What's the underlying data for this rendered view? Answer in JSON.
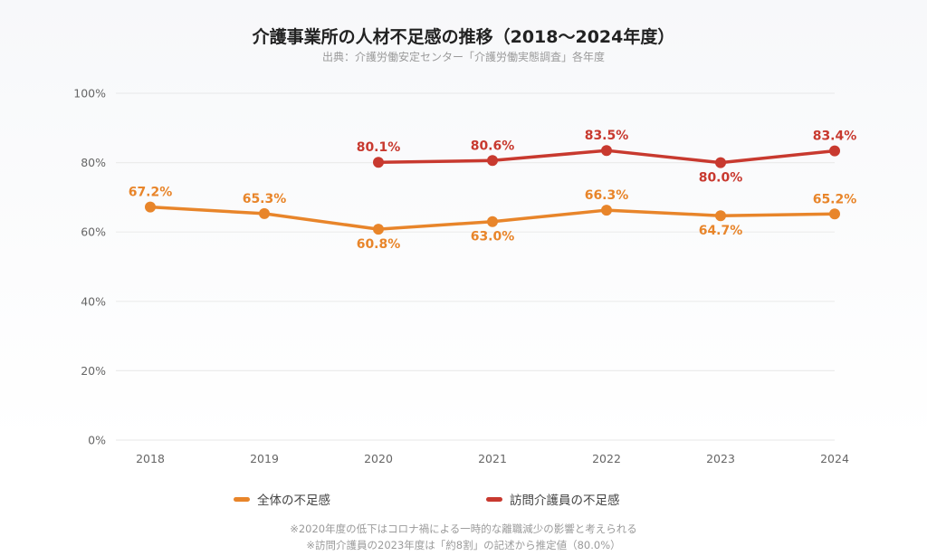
{
  "chart_data": {
    "type": "line",
    "title": "介護事業所の人材不足感の推移（2018〜2024年度）",
    "subtitle": "出典：介護労働安定センター「介護労働実態調査」各年度",
    "x": [
      "2018",
      "2019",
      "2020",
      "2021",
      "2022",
      "2023",
      "2024"
    ],
    "ylim": [
      0,
      100
    ],
    "yticks": [
      0,
      20,
      40,
      60,
      80,
      100
    ],
    "ytick_labels": [
      "0%",
      "20%",
      "40%",
      "60%",
      "80%",
      "100%"
    ],
    "grid": true,
    "legend_position": "bottom",
    "series": [
      {
        "name": "全体の不足感",
        "color": "#e8852a",
        "values": [
          67.2,
          65.3,
          60.8,
          63.0,
          66.3,
          64.7,
          65.2
        ],
        "labels": [
          "67.2%",
          "65.3%",
          "60.8%",
          "63.0%",
          "66.3%",
          "64.7%",
          "65.2%"
        ],
        "label_side": [
          "above",
          "above",
          "below",
          "below",
          "above",
          "below",
          "above"
        ]
      },
      {
        "name": "訪問介護員の不足感",
        "color": "#c8392f",
        "values": [
          null,
          null,
          80.1,
          80.6,
          83.5,
          80.0,
          83.4
        ],
        "labels": [
          null,
          null,
          "80.1%",
          "80.6%",
          "83.5%",
          "80.0%",
          "83.4%"
        ],
        "label_side": [
          null,
          null,
          "above",
          "above",
          "above",
          "below",
          "above"
        ]
      }
    ]
  },
  "notes": [
    "※2020年度の低下はコロナ禍による一時的な離職減少の影響と考えられる",
    "※訪問介護員の2023年度は「約8割」の記述から推定値（80.0%）"
  ]
}
